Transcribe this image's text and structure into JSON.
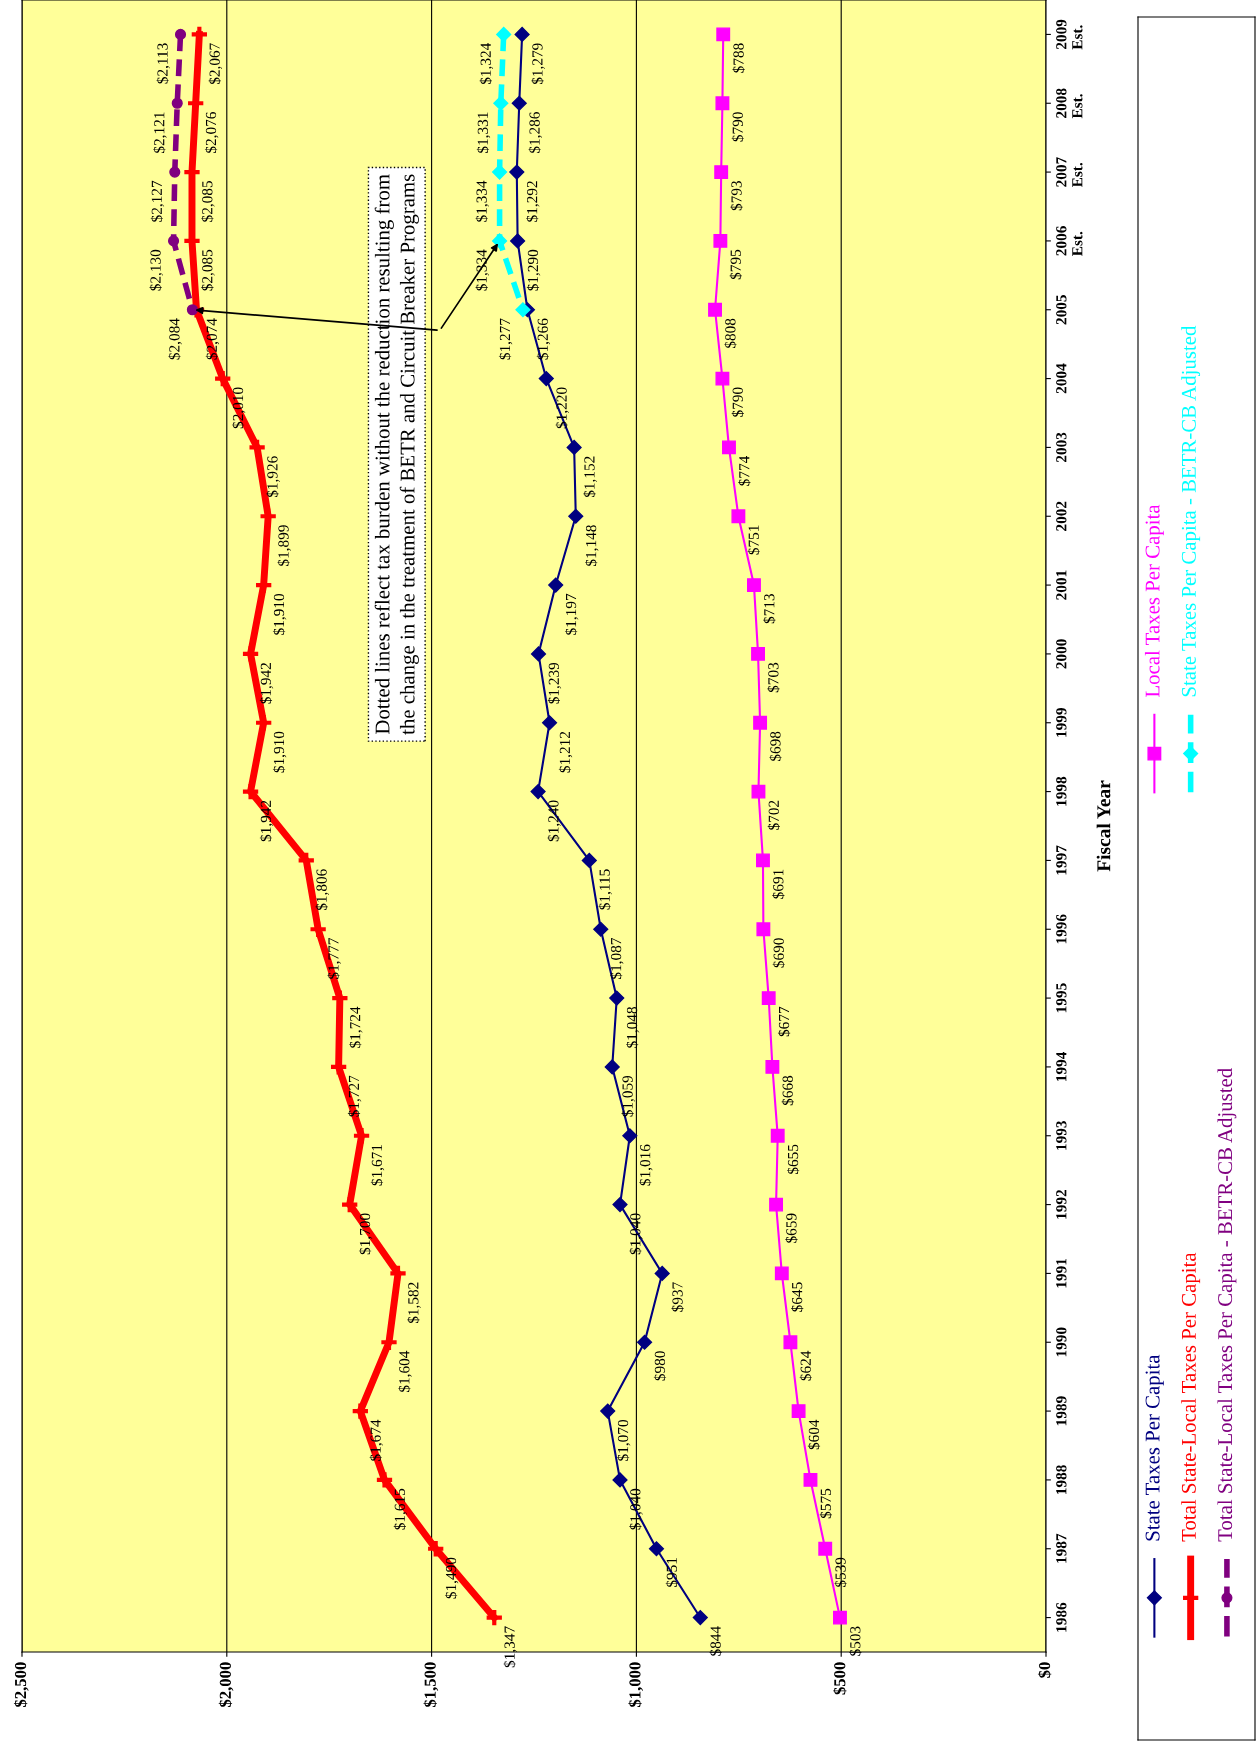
{
  "chart_data": {
    "type": "line",
    "orientation": "horizontal",
    "ylabel": "Fiscal Year",
    "categories": [
      "2009\nEst.",
      "2008\nEst.",
      "2007\nEst.",
      "2006\nEst.",
      "2005",
      "2004",
      "2003",
      "2002",
      "2001",
      "2000",
      "1999",
      "1998",
      "1997",
      "1996",
      "1995",
      "1994",
      "1993",
      "1992",
      "1991",
      "1990",
      "1989",
      "1988",
      "1987",
      "1986"
    ],
    "xlim": [
      2500,
      0
    ],
    "xticks": [
      {
        "value": 0,
        "label": "$0"
      },
      {
        "value": 500,
        "label": "$500"
      },
      {
        "value": 1000,
        "label": "$1,000"
      },
      {
        "value": 1500,
        "label": "$1,500"
      },
      {
        "value": 2000,
        "label": "$2,000"
      },
      {
        "value": 2500,
        "label": "$2,500"
      }
    ],
    "grid": "x",
    "legend": "right",
    "series": [
      {
        "name": "State Taxes Per Capita",
        "color": "#000080",
        "marker": "diamond",
        "line_style": "solid",
        "values": [
          1279,
          1286,
          1292,
          1290,
          1266,
          1220,
          1152,
          1148,
          1197,
          1239,
          1212,
          1240,
          1115,
          1087,
          1048,
          1059,
          1016,
          1040,
          937,
          980,
          1070,
          1040,
          951,
          844
        ],
        "value_labels": [
          "$1,279",
          "$1,286",
          "$1,292",
          "$1,290",
          "$1,266",
          "$1,220",
          "$1,152",
          "$1,148",
          "$1,197",
          "$1,239",
          "$1,212",
          "$1,240",
          "$1,115",
          "$1,087",
          "$1,048",
          "$1,059",
          "$1,016",
          "$1,040",
          "$937",
          "$980",
          "$1,070",
          "$1,040",
          "$951",
          "$844"
        ]
      },
      {
        "name": "Total State-Local Taxes Per Capita",
        "color": "#ff0000",
        "marker": "cross",
        "line_style": "solid",
        "values": [
          2067,
          2076,
          2085,
          2085,
          2074,
          2010,
          1926,
          1899,
          1910,
          1942,
          1910,
          1942,
          1806,
          1777,
          1724,
          1727,
          1671,
          1700,
          1582,
          1604,
          1674,
          1615,
          1490,
          1347
        ],
        "value_labels": [
          "$2,067",
          "$2,076",
          "$2,085",
          "$2,085",
          "$2,074",
          "$2,010",
          "$1,926",
          "$1,899",
          "$1,910",
          "$1,942",
          "$1,910",
          "$1,942",
          "$1,806",
          "$1,777",
          "$1,724",
          "$1,727",
          "$1,671",
          "$1,700",
          "$1,582",
          "$1,604",
          "$1,674",
          "$1,615",
          "$1,490",
          "$1,347"
        ]
      },
      {
        "name": "Total State-Local Taxes Per Capita - BETR-CB Adjusted",
        "color": "#800080",
        "marker": "circle",
        "line_style": "dashed",
        "values": [
          2113,
          2121,
          2127,
          2130,
          2084,
          null,
          null,
          null,
          null,
          null,
          null,
          null,
          null,
          null,
          null,
          null,
          null,
          null,
          null,
          null,
          null,
          null,
          null,
          null
        ],
        "value_labels": [
          "$2,113",
          "$2,121",
          "$2,127",
          "$2,130",
          "$2,084",
          null,
          null,
          null,
          null,
          null,
          null,
          null,
          null,
          null,
          null,
          null,
          null,
          null,
          null,
          null,
          null,
          null,
          null,
          null
        ]
      },
      {
        "name": "Local Taxes Per Capita",
        "color": "#ff00ff",
        "marker": "square",
        "line_style": "solid",
        "values": [
          788,
          790,
          793,
          795,
          808,
          790,
          774,
          751,
          713,
          703,
          698,
          702,
          691,
          690,
          677,
          668,
          655,
          659,
          645,
          624,
          604,
          575,
          539,
          503
        ],
        "value_labels": [
          "$788",
          "$790",
          "$793",
          "$795",
          "$808",
          "$790",
          "$774",
          "$751",
          "$713",
          "$703",
          "$698",
          "$702",
          "$691",
          "$690",
          "$677",
          "$668",
          "$655",
          "$659",
          "$645",
          "$624",
          "$604",
          "$575",
          "$539",
          "$503"
        ]
      },
      {
        "name": "State Taxes Per Capita - BETR-CB Adjusted",
        "color": "#00ffff",
        "marker": "diamond",
        "line_style": "dashed",
        "values": [
          1324,
          1331,
          1334,
          1334,
          1277,
          null,
          null,
          null,
          null,
          null,
          null,
          null,
          null,
          null,
          null,
          null,
          null,
          null,
          null,
          null,
          null,
          null,
          null,
          null
        ],
        "value_labels": [
          "$1,324",
          "$1,331",
          "$1,334",
          "$1,334",
          "$1,277",
          null,
          null,
          null,
          null,
          null,
          null,
          null,
          null,
          null,
          null,
          null,
          null,
          null,
          null,
          null,
          null,
          null,
          null,
          null
        ]
      }
    ],
    "annotations": [
      {
        "text": "Dotted lines reflect tax burden without the reduction resulting from\nthe change in the treatment of BETR and Circuit Breaker Programs",
        "x": 2084,
        "y": "2005"
      }
    ]
  }
}
